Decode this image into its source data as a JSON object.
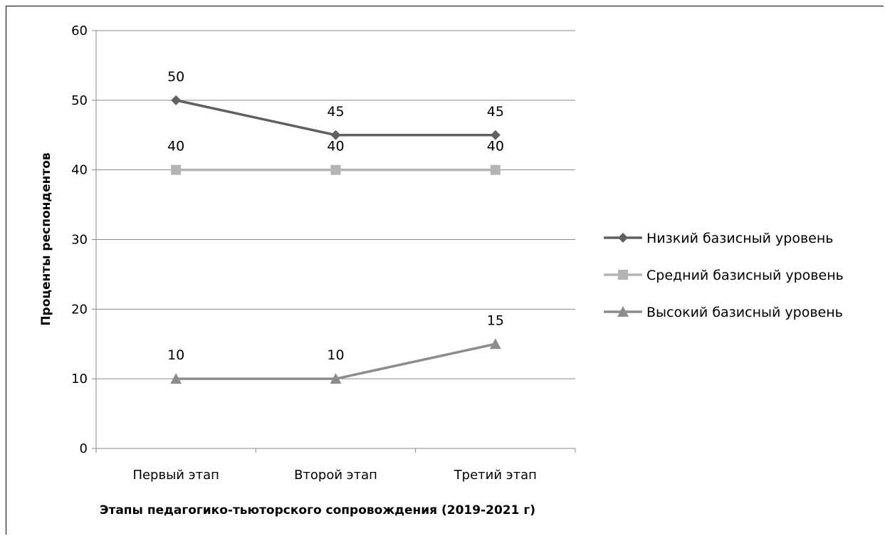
{
  "chart_data": {
    "type": "line",
    "title": "",
    "xlabel": "Этапы педагогико-тьюторского сопровождения (2019-2021 г)",
    "ylabel": "Проценты респондентов",
    "categories": [
      "Первый этап",
      "Второй этап",
      "Третий этап"
    ],
    "ylim": [
      0,
      60
    ],
    "yticks": [
      0,
      10,
      20,
      30,
      40,
      50,
      60
    ],
    "grid": true,
    "legend_position": "right",
    "data_labels": true,
    "series": [
      {
        "name": "Низкий базисный уровень",
        "values": [
          50,
          45,
          45
        ],
        "marker": "diamond",
        "color": "#606060"
      },
      {
        "name": "Средний базисный уровень",
        "values": [
          40,
          40,
          40
        ],
        "marker": "square",
        "color": "#b4b4b4"
      },
      {
        "name": "Высокий базисный уровень",
        "values": [
          10,
          10,
          15
        ],
        "marker": "triangle",
        "color": "#8c8c8c"
      }
    ]
  }
}
